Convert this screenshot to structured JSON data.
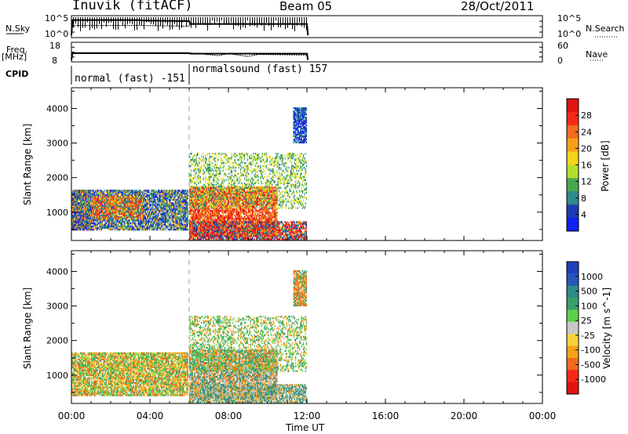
{
  "header": {
    "station": "Inuvik (fitACF)",
    "beam": "Beam 05",
    "date": "28/Oct/2011"
  },
  "labels": {
    "nsky": "N.Sky",
    "nsearch": "N.Search",
    "freq": "Freq.",
    "freq_unit": "[MHz]",
    "nave": "Nave",
    "cpid": "CPID",
    "slant_range": "Slant Range [km]",
    "time_ut": "Time UT"
  },
  "cpid_segments": [
    {
      "name": "normal (fast) -151",
      "start": 0,
      "end": 6
    },
    {
      "name": "normalsound (fast) 157",
      "start": 6,
      "end": 24
    }
  ],
  "chart_data": [
    {
      "type": "line",
      "title": "N.Sky / N.Search",
      "left_ticks": [
        "10^5",
        "10^0"
      ],
      "right_ticks": [
        "10^5",
        "10^0"
      ],
      "x_range": [
        0,
        24
      ],
      "series": [
        {
          "name": "N.Sky",
          "x": [
            0,
            0.05,
            3.5,
            3.55,
            6,
            6.05,
            12,
            12.05
          ],
          "y": [
            0.1,
            0.8,
            0.8,
            0.78,
            0.75,
            0.62,
            0.62,
            0.1
          ]
        },
        {
          "name": "N.Search",
          "x": [
            0,
            0.05,
            3.5,
            6,
            6.05,
            12
          ],
          "y": [
            0.1,
            0.55,
            0.55,
            0.52,
            0.62,
            0.62
          ]
        }
      ]
    },
    {
      "type": "line",
      "title": "Freq. / Nave",
      "left_ticks": [
        "18",
        "8"
      ],
      "right_ticks": [
        "60",
        "0"
      ],
      "x_range": [
        0,
        24
      ],
      "series": [
        {
          "name": "Freq.",
          "x": [
            0,
            0.05,
            6,
            6.05,
            12,
            12.05
          ],
          "y": [
            0.1,
            0.45,
            0.45,
            0.42,
            0.42,
            0.1
          ]
        },
        {
          "name": "Nave",
          "x": [
            0,
            0.05,
            6,
            6.05,
            7.5,
            8,
            9,
            9.5,
            12
          ],
          "y": [
            0.1,
            0.42,
            0.42,
            0.46,
            0.32,
            0.42,
            0.28,
            0.38,
            0.35
          ]
        }
      ]
    },
    {
      "type": "heatmap",
      "title": "Power",
      "ylabel": "Slant Range [km]",
      "xlabel": "Time UT",
      "x_ticks": [
        "00:00",
        "04:00",
        "08:00",
        "12:00",
        "16:00",
        "20:00",
        "00:00"
      ],
      "x_range": [
        0,
        24
      ],
      "ylim": [
        180,
        4600
      ],
      "y_ticks": [
        1000,
        2000,
        3000,
        4000
      ],
      "colorbar": {
        "label": "Power [dB]",
        "ticks": [
          "4",
          "8",
          "12",
          "16",
          "20",
          "24",
          "28"
        ],
        "colors": [
          "#0d22f0",
          "#1a3cb0",
          "#2f8a8a",
          "#49a94e",
          "#b2df2d",
          "#f3d519",
          "#f6a11b",
          "#f36b1c",
          "#f32a18",
          "#e11212"
        ]
      },
      "regions": [
        {
          "t0": 0,
          "t1": 1,
          "r0": 480,
          "r1": 1650,
          "palette": [
            8,
            9,
            7,
            5
          ]
        },
        {
          "t0": 0,
          "t1": 5.9,
          "r0": 480,
          "r1": 1650,
          "palette": [
            1,
            2,
            3,
            0,
            6
          ]
        },
        {
          "t0": 1,
          "t1": 3.6,
          "r0": 800,
          "r1": 1450,
          "palette": [
            7,
            8,
            5,
            2
          ]
        },
        {
          "t0": 6,
          "t1": 10.5,
          "r0": 300,
          "r1": 1700,
          "palette": [
            8,
            9,
            6,
            7
          ]
        },
        {
          "t0": 6,
          "t1": 12,
          "r0": 200,
          "r1": 700,
          "palette": [
            9,
            8,
            6,
            2,
            1
          ]
        },
        {
          "t0": 6,
          "t1": 12,
          "r0": 1100,
          "r1": 2700,
          "palette": [
            2,
            3,
            4,
            5
          ]
        },
        {
          "t0": 11.3,
          "t1": 12,
          "r0": 3000,
          "r1": 4000,
          "palette": [
            0,
            1,
            2
          ]
        }
      ]
    },
    {
      "type": "heatmap",
      "title": "Velocity",
      "ylabel": "Slant Range [km]",
      "xlabel": "Time UT",
      "x_ticks": [
        "00:00",
        "04:00",
        "08:00",
        "12:00",
        "16:00",
        "20:00",
        "00:00"
      ],
      "x_range": [
        0,
        24
      ],
      "ylim": [
        180,
        4600
      ],
      "y_ticks": [
        1000,
        2000,
        3000,
        4000
      ],
      "colorbar": {
        "label": "Velocity [m s^-1]",
        "ticks": [
          "1000",
          "500",
          "100",
          "25",
          "-25",
          "-100",
          "-500",
          "-1000"
        ],
        "colors": [
          "#1f3fbf",
          "#2a57b8",
          "#2f8a8a",
          "#3aa06a",
          "#5fd04a",
          "#c8c8c8",
          "#f7d23a",
          "#f5a21a",
          "#f36b1c",
          "#f32a18",
          "#e11212"
        ]
      },
      "regions": [
        {
          "t0": 0,
          "t1": 5.9,
          "r0": 400,
          "r1": 1650,
          "palette": [
            3,
            6,
            7,
            8,
            4
          ]
        },
        {
          "t0": 6,
          "t1": 10.5,
          "r0": 300,
          "r1": 1700,
          "palette": [
            3,
            2,
            7,
            8,
            5
          ]
        },
        {
          "t0": 6,
          "t1": 12,
          "r0": 200,
          "r1": 700,
          "palette": [
            5,
            3,
            2,
            7
          ]
        },
        {
          "t0": 6,
          "t1": 12,
          "r0": 1100,
          "r1": 2700,
          "palette": [
            3,
            4,
            7
          ]
        },
        {
          "t0": 11.3,
          "t1": 12,
          "r0": 3000,
          "r1": 4000,
          "palette": [
            7,
            8,
            3
          ]
        }
      ]
    }
  ]
}
